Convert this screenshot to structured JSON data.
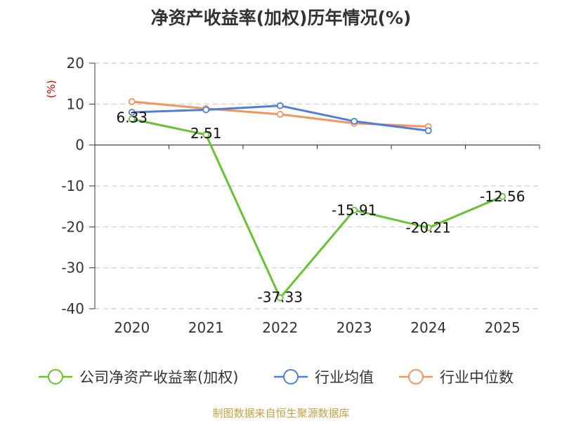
{
  "title": "净资产收益率(加权)历年情况(%)",
  "source": "制图数据来自恒生聚源数据库",
  "colors": {
    "company": "#66c431",
    "industry_avg": "#4f7fd9",
    "industry_median": "#f5945e",
    "unit": "#dd0000",
    "source": "#c8a040",
    "grid": "#cccccc",
    "axis": "#333333"
  },
  "chart_data": {
    "type": "line",
    "title": "净资产收益率(加权)历年情况(%)",
    "ylabel": "(%)",
    "xlabel": "",
    "ylim": [
      -40,
      20
    ],
    "yticks": [
      20,
      10,
      0,
      -10,
      -20,
      -30,
      -40
    ],
    "categories": [
      "2020",
      "2021",
      "2022",
      "2023",
      "2024",
      "2025"
    ],
    "grid": true,
    "legend_position": "bottom",
    "series": [
      {
        "name": "公司净资产收益率(加权)",
        "color": "#66c431",
        "values": [
          6.33,
          2.51,
          -37.33,
          -15.91,
          -20.21,
          -12.56
        ],
        "labels": [
          "6.33",
          "2.51",
          "-37.33",
          "-15.91",
          "-20.21",
          "-12.56"
        ]
      },
      {
        "name": "行业均值",
        "color": "#4f7fd9",
        "values": [
          8.0,
          8.6,
          9.6,
          5.8,
          3.5,
          null
        ]
      },
      {
        "name": "行业中位数",
        "color": "#f5945e",
        "values": [
          10.6,
          8.9,
          7.5,
          5.3,
          4.5,
          null
        ]
      }
    ]
  }
}
